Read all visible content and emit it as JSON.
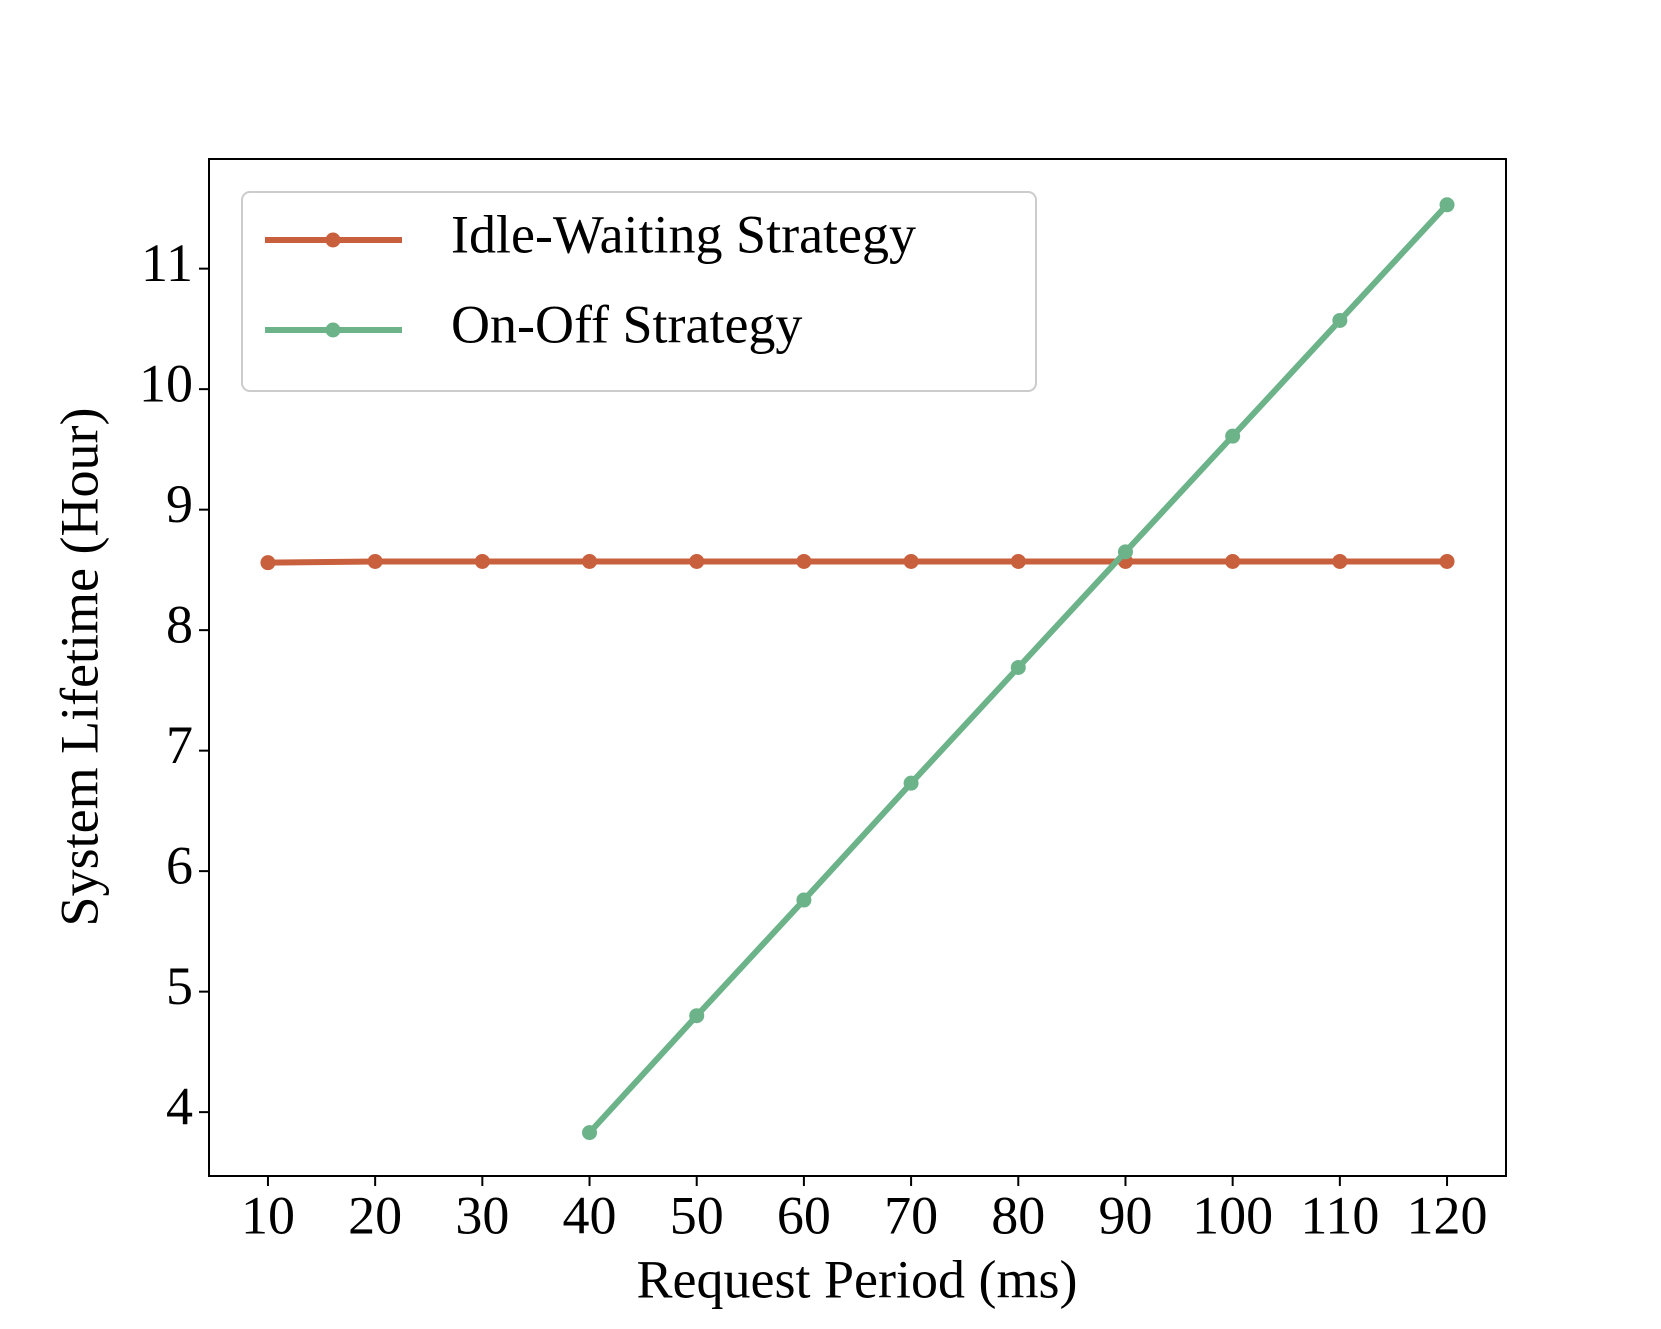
{
  "chart_data": {
    "type": "line",
    "xlabel": "Request Period (ms)",
    "ylabel": "System Lifetime (Hour)",
    "x": [
      10,
      20,
      30,
      40,
      50,
      60,
      70,
      80,
      90,
      100,
      110,
      120
    ],
    "series": [
      {
        "name": "Idle-Waiting Strategy",
        "color": "#c8603e",
        "values": [
          8.56,
          8.57,
          8.57,
          8.57,
          8.57,
          8.57,
          8.57,
          8.57,
          8.57,
          8.57,
          8.57,
          8.57
        ]
      },
      {
        "name": "On-Off Strategy",
        "color": "#6db38a",
        "values": [
          null,
          null,
          null,
          3.83,
          4.8,
          5.76,
          6.73,
          7.69,
          8.65,
          9.61,
          10.57,
          11.53
        ]
      }
    ],
    "xlim": [
      4.5,
      125.5
    ],
    "xticks": [
      10,
      20,
      30,
      40,
      50,
      60,
      70,
      80,
      90,
      100,
      110,
      120
    ],
    "ylim": [
      3.47,
      11.91
    ],
    "yticks": [
      4,
      5,
      6,
      7,
      8,
      9,
      10,
      11
    ],
    "grid": false,
    "legend": "upper left"
  }
}
